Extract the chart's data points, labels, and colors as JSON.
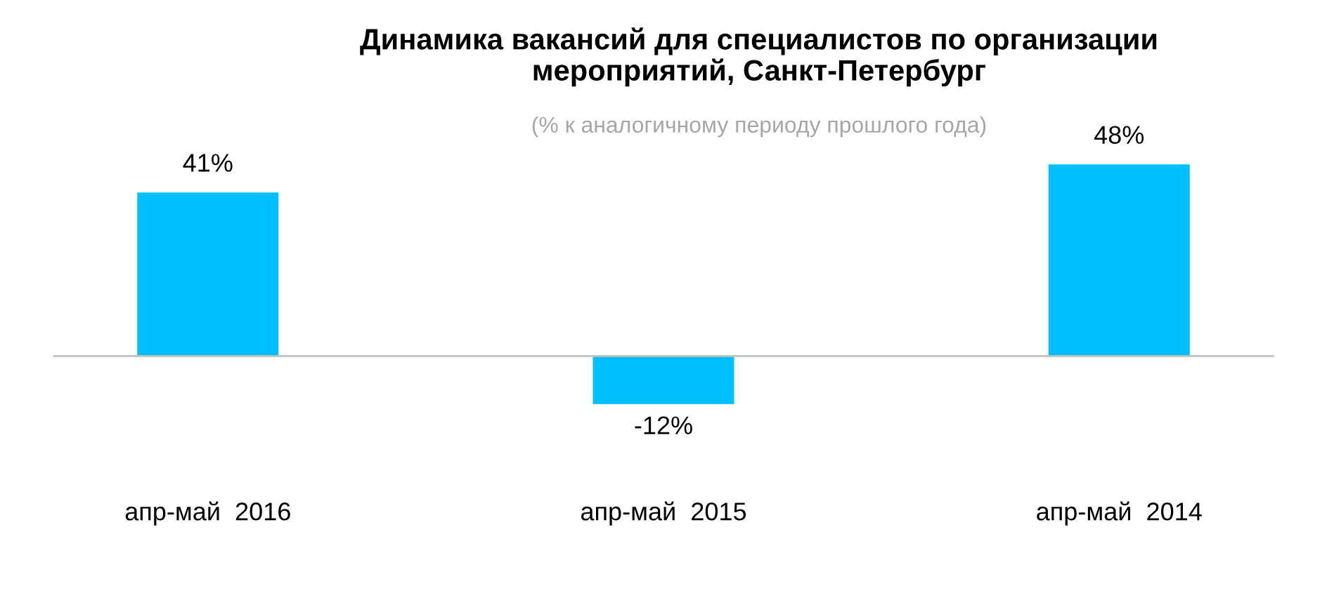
{
  "chart_data": {
    "type": "bar",
    "title": "Динамика вакансий для специалистов по организации\nмероприятий, Санкт-Петербург",
    "subtitle": "(% к аналогичному периоду прошлого года)",
    "categories": [
      "апр-май  2016",
      "апр-май  2015",
      "апр-май  2014"
    ],
    "values": [
      41,
      -12,
      48
    ],
    "value_labels": [
      "41%",
      "-12%",
      "48%"
    ],
    "color": "#00bfff",
    "grid": false,
    "legend": false
  }
}
